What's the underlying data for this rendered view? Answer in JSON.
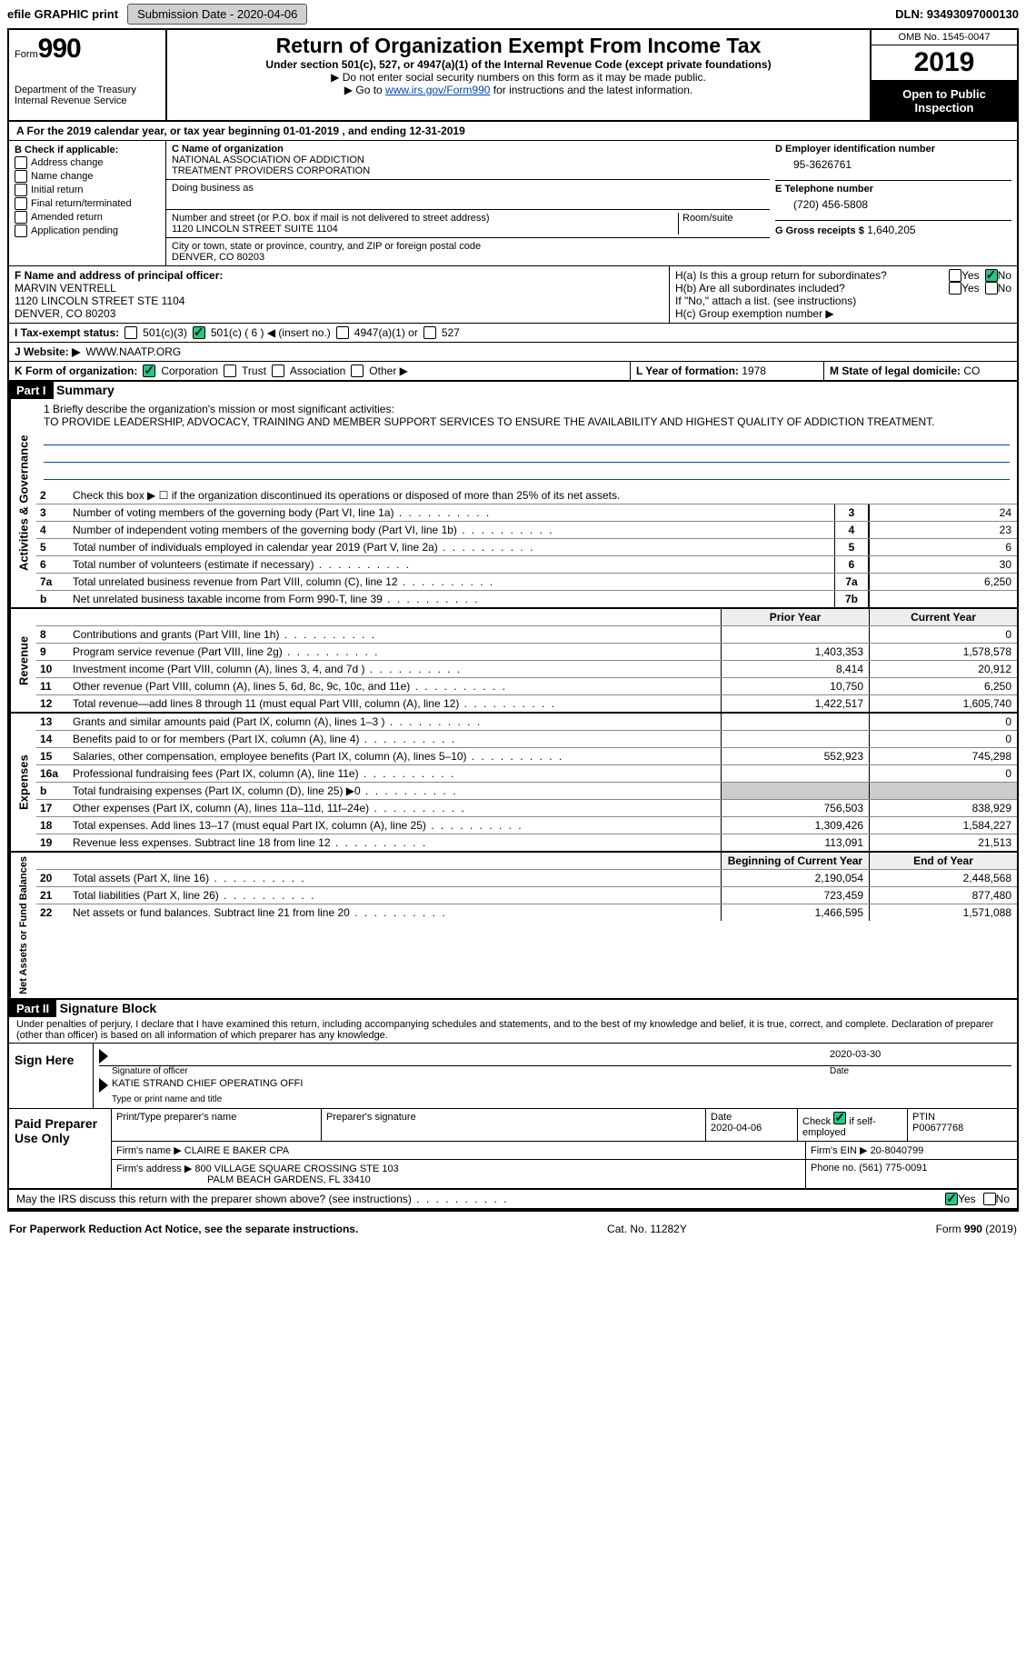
{
  "topbar": {
    "efile_label": "efile GRAPHIC print",
    "submission_btn": "Submission Date - 2020-04-06",
    "dln": "DLN: 93493097000130"
  },
  "header": {
    "form_word": "Form",
    "form_num": "990",
    "dept": "Department of the Treasury",
    "irs": "Internal Revenue Service",
    "title": "Return of Organization Exempt From Income Tax",
    "sub": "Under section 501(c), 527, or 4947(a)(1) of the Internal Revenue Code (except private foundations)",
    "note1": "▶ Do not enter social security numbers on this form as it may be made public.",
    "note2_pre": "▶ Go to ",
    "note2_link": "www.irs.gov/Form990",
    "note2_post": " for instructions and the latest information.",
    "omb": "OMB No. 1545-0047",
    "year": "2019",
    "open": "Open to Public Inspection"
  },
  "row_a": "A   For the 2019 calendar year, or tax year beginning 01-01-2019   , and ending 12-31-2019",
  "b": {
    "title": "B Check if applicable:",
    "items": [
      "Address change",
      "Name change",
      "Initial return",
      "Final return/terminated",
      "Amended return",
      "Application pending"
    ]
  },
  "c": {
    "name_lbl": "C Name of organization",
    "name1": "NATIONAL ASSOCIATION OF ADDICTION",
    "name2": "TREATMENT PROVIDERS CORPORATION",
    "dba_lbl": "Doing business as",
    "addr_lbl": "Number and street (or P.O. box if mail is not delivered to street address)",
    "room_lbl": "Room/suite",
    "addr": "1120 LINCOLN STREET SUITE 1104",
    "city_lbl": "City or town, state or province, country, and ZIP or foreign postal code",
    "city": "DENVER, CO  80203"
  },
  "d": {
    "lbl": "D Employer identification number",
    "val": "95-3626761"
  },
  "e": {
    "lbl": "E Telephone number",
    "val": "(720) 456-5808"
  },
  "g": {
    "lbl": "G Gross receipts $",
    "val": "1,640,205"
  },
  "f": {
    "lbl": "F  Name and address of principal officer:",
    "l1": "MARVIN VENTRELL",
    "l2": "1120 LINCOLN STREET STE 1104",
    "l3": "DENVER, CO  80203"
  },
  "h": {
    "ha": "H(a)  Is this a group return for subordinates?",
    "hb": "H(b)  Are all subordinates included?",
    "hb_note": "If \"No,\" attach a list. (see instructions)",
    "hc": "H(c)  Group exemption number ▶",
    "yes": "Yes",
    "no": "No"
  },
  "i": {
    "lbl": "I   Tax-exempt status:",
    "o1": "501(c)(3)",
    "o2": "501(c) ( 6 ) ◀ (insert no.)",
    "o3": "4947(a)(1) or",
    "o4": "527"
  },
  "j": {
    "lbl": "J   Website: ▶",
    "val": "WWW.NAATP.ORG"
  },
  "k": {
    "lbl": "K Form of organization:",
    "o1": "Corporation",
    "o2": "Trust",
    "o3": "Association",
    "o4": "Other ▶"
  },
  "l": {
    "lbl": "L Year of formation:",
    "val": "1978"
  },
  "m": {
    "lbl": "M State of legal domicile:",
    "val": "CO"
  },
  "part1": {
    "bar": "Part I",
    "title": "Summary"
  },
  "mission": {
    "l1_lbl": "1  Briefly describe the organization's mission or most significant activities:",
    "text": "TO PROVIDE LEADERSHIP, ADVOCACY, TRAINING AND MEMBER SUPPORT SERVICES TO ENSURE THE AVAILABILITY AND HIGHEST QUALITY OF ADDICTION TREATMENT."
  },
  "gov": {
    "l2": "Check this box ▶ ☐ if the organization discontinued its operations or disposed of more than 25% of its net assets.",
    "rows": [
      {
        "n": "3",
        "t": "Number of voting members of the governing body (Part VI, line 1a)",
        "b": "3",
        "v": "24"
      },
      {
        "n": "4",
        "t": "Number of independent voting members of the governing body (Part VI, line 1b)",
        "b": "4",
        "v": "23"
      },
      {
        "n": "5",
        "t": "Total number of individuals employed in calendar year 2019 (Part V, line 2a)",
        "b": "5",
        "v": "6"
      },
      {
        "n": "6",
        "t": "Total number of volunteers (estimate if necessary)",
        "b": "6",
        "v": "30"
      },
      {
        "n": "7a",
        "t": "Total unrelated business revenue from Part VIII, column (C), line 12",
        "b": "7a",
        "v": "6,250"
      },
      {
        "n": "b",
        "t": "Net unrelated business taxable income from Form 990-T, line 39",
        "b": "7b",
        "v": ""
      }
    ]
  },
  "cols": {
    "prior": "Prior Year",
    "current": "Current Year",
    "begin": "Beginning of Current Year",
    "end": "End of Year"
  },
  "rev": [
    {
      "n": "8",
      "t": "Contributions and grants (Part VIII, line 1h)",
      "p": "",
      "c": "0"
    },
    {
      "n": "9",
      "t": "Program service revenue (Part VIII, line 2g)",
      "p": "1,403,353",
      "c": "1,578,578"
    },
    {
      "n": "10",
      "t": "Investment income (Part VIII, column (A), lines 3, 4, and 7d )",
      "p": "8,414",
      "c": "20,912"
    },
    {
      "n": "11",
      "t": "Other revenue (Part VIII, column (A), lines 5, 6d, 8c, 9c, 10c, and 11e)",
      "p": "10,750",
      "c": "6,250"
    },
    {
      "n": "12",
      "t": "Total revenue—add lines 8 through 11 (must equal Part VIII, column (A), line 12)",
      "p": "1,422,517",
      "c": "1,605,740"
    }
  ],
  "exp": [
    {
      "n": "13",
      "t": "Grants and similar amounts paid (Part IX, column (A), lines 1–3 )",
      "p": "",
      "c": "0"
    },
    {
      "n": "14",
      "t": "Benefits paid to or for members (Part IX, column (A), line 4)",
      "p": "",
      "c": "0"
    },
    {
      "n": "15",
      "t": "Salaries, other compensation, employee benefits (Part IX, column (A), lines 5–10)",
      "p": "552,923",
      "c": "745,298"
    },
    {
      "n": "16a",
      "t": "Professional fundraising fees (Part IX, column (A), line 11e)",
      "p": "",
      "c": "0"
    },
    {
      "n": "b",
      "t": "Total fundraising expenses (Part IX, column (D), line 25) ▶0",
      "p": "SHADE",
      "c": "SHADE"
    },
    {
      "n": "17",
      "t": "Other expenses (Part IX, column (A), lines 11a–11d, 11f–24e)",
      "p": "756,503",
      "c": "838,929"
    },
    {
      "n": "18",
      "t": "Total expenses. Add lines 13–17 (must equal Part IX, column (A), line 25)",
      "p": "1,309,426",
      "c": "1,584,227"
    },
    {
      "n": "19",
      "t": "Revenue less expenses. Subtract line 18 from line 12",
      "p": "113,091",
      "c": "21,513"
    }
  ],
  "net": [
    {
      "n": "20",
      "t": "Total assets (Part X, line 16)",
      "p": "2,190,054",
      "c": "2,448,568"
    },
    {
      "n": "21",
      "t": "Total liabilities (Part X, line 26)",
      "p": "723,459",
      "c": "877,480"
    },
    {
      "n": "22",
      "t": "Net assets or fund balances. Subtract line 21 from line 20",
      "p": "1,466,595",
      "c": "1,571,088"
    }
  ],
  "vlabels": {
    "gov": "Activities & Governance",
    "rev": "Revenue",
    "exp": "Expenses",
    "net": "Net Assets or Fund Balances"
  },
  "part2": {
    "bar": "Part II",
    "title": "Signature Block"
  },
  "sig_decl": "Under penalties of perjury, I declare that I have examined this return, including accompanying schedules and statements, and to the best of my knowledge and belief, it is true, correct, and complete. Declaration of preparer (other than officer) is based on all information of which preparer has any knowledge.",
  "sign": {
    "here": "Sign Here",
    "date": "2020-03-30",
    "sig_lbl": "Signature of officer",
    "date_lbl": "Date",
    "name": "KATIE STRAND  CHIEF OPERATING OFFI",
    "name_lbl": "Type or print name and title"
  },
  "prep": {
    "title": "Paid Preparer Use Only",
    "h1": "Print/Type preparer's name",
    "h2": "Preparer's signature",
    "h3": "Date",
    "h4": "Check ☑ if self-employed",
    "h5": "PTIN",
    "date": "2020-04-06",
    "ptin": "P00677768",
    "firm_lbl": "Firm's name   ▶",
    "firm": "CLAIRE E BAKER CPA",
    "ein_lbl": "Firm's EIN ▶",
    "ein": "20-8040799",
    "addr_lbl": "Firm's address ▶",
    "addr1": "800 VILLAGE SQUARE CROSSING STE 103",
    "addr2": "PALM BEACH GARDENS, FL  33410",
    "phone_lbl": "Phone no.",
    "phone": "(561) 775-0091"
  },
  "discuss": "May the IRS discuss this return with the preparer shown above? (see instructions)",
  "foot": {
    "l": "For Paperwork Reduction Act Notice, see the separate instructions.",
    "c": "Cat. No. 11282Y",
    "r": "Form 990 (2019)"
  }
}
